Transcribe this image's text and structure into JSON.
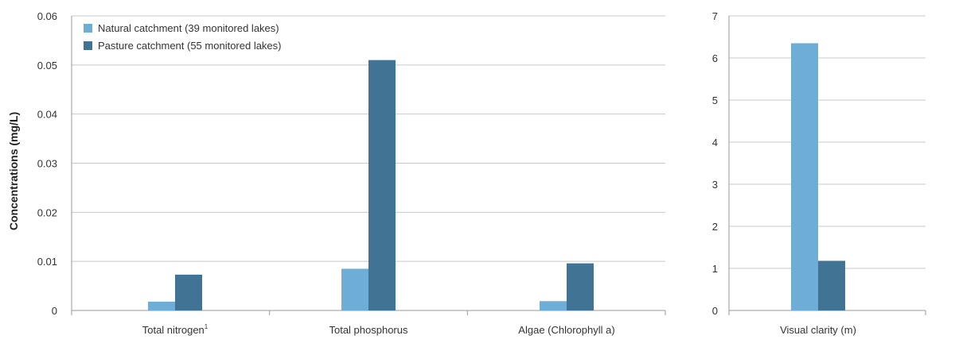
{
  "colors": {
    "natural": "#6eaed6",
    "pasture": "#417394"
  },
  "chart_data": [
    {
      "type": "bar",
      "ylabel": "Concentrations (mg/L)",
      "ylim": [
        0,
        0.06
      ],
      "yticks": [
        {
          "value": 0,
          "label": "0"
        },
        {
          "value": 0.01,
          "label": "0.01"
        },
        {
          "value": 0.02,
          "label": "0.02"
        },
        {
          "value": 0.03,
          "label": "0.03"
        },
        {
          "value": 0.04,
          "label": "0.04"
        },
        {
          "value": 0.05,
          "label": "0.05"
        },
        {
          "value": 0.06,
          "label": "0.06"
        }
      ],
      "categories": [
        {
          "label": "Total nitrogen",
          "sup": "1"
        },
        {
          "label": "Total phosphorus",
          "sup": ""
        },
        {
          "label": "Algae (Chlorophyll a)",
          "sup": ""
        }
      ],
      "series": [
        {
          "name": "Natural catchment (39 monitored lakes)",
          "values": [
            0.0018,
            0.0085,
            0.0019
          ]
        },
        {
          "name": "Pasture catchment (55 monitored lakes)",
          "values": [
            0.0073,
            0.051,
            0.0096
          ]
        }
      ],
      "legend": "top-left",
      "grid": true
    },
    {
      "type": "bar",
      "ylim": [
        0,
        7
      ],
      "yticks": [
        {
          "value": 0,
          "label": "0"
        },
        {
          "value": 1,
          "label": "1"
        },
        {
          "value": 2,
          "label": "2"
        },
        {
          "value": 3,
          "label": "3"
        },
        {
          "value": 4,
          "label": "4"
        },
        {
          "value": 5,
          "label": "5"
        },
        {
          "value": 6,
          "label": "6"
        },
        {
          "value": 7,
          "label": "7"
        }
      ],
      "categories": [
        {
          "label": "Visual clarity (m)",
          "sup": ""
        }
      ],
      "series": [
        {
          "name": "Natural catchment (39 monitored lakes)",
          "values": [
            6.35
          ]
        },
        {
          "name": "Pasture catchment (55 monitored lakes)",
          "values": [
            1.18
          ]
        }
      ],
      "grid": true
    }
  ]
}
